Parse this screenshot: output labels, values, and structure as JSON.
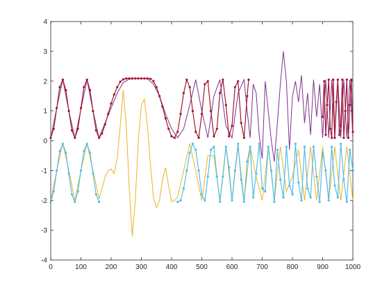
{
  "chart_data": {
    "type": "line",
    "title": "",
    "xlabel": "",
    "ylabel": "",
    "xlim": [
      0,
      1000
    ],
    "ylim": [
      -4,
      4
    ],
    "x_ticks": [
      "0",
      "100",
      "200",
      "300",
      "400",
      "500",
      "600",
      "700",
      "800",
      "900",
      "1000"
    ],
    "y_ticks": [
      "4",
      "3",
      "2",
      "1",
      "0",
      "-1",
      "-2",
      "-3",
      "-4"
    ],
    "grid": false,
    "legend": "none",
    "series": [
      {
        "style": "line",
        "color": "#7E2F8E",
        "x": [
          0,
          20,
          40,
          60,
          80,
          100,
          120,
          140,
          160,
          180,
          200,
          220,
          240,
          260,
          280,
          300,
          320,
          340,
          360,
          380,
          400,
          420,
          440,
          460,
          480,
          500,
          520,
          540,
          560,
          580,
          600,
          620,
          640,
          650,
          660,
          670,
          680,
          690,
          700,
          710,
          720,
          730,
          740,
          750,
          760,
          770,
          780,
          790,
          800,
          810,
          820,
          830,
          840,
          850,
          860,
          870,
          880,
          890,
          900,
          910,
          920,
          930,
          940,
          950,
          960,
          970,
          980,
          990,
          1000
        ],
        "y": [
          0.1,
          1.1,
          2.05,
          1.0,
          0.1,
          1.05,
          2.05,
          1.0,
          0.1,
          0.6,
          1.1,
          1.6,
          1.95,
          2.07,
          2.09,
          2.09,
          2.08,
          1.9,
          1.5,
          0.9,
          0.4,
          0.1,
          0.4,
          1.2,
          2.05,
          1.0,
          0.1,
          1.5,
          2.05,
          0.5,
          0.1,
          1.6,
          2.05,
          1.0,
          0.1,
          1.9,
          1.6,
          0.2,
          -0.6,
          2.0,
          1.0,
          0.0,
          -0.7,
          0.6,
          1.9,
          3.0,
          2.0,
          -0.3,
          1.5,
          2.0,
          1.3,
          2.2,
          0.6,
          1.6,
          0.2,
          2.05,
          0.8,
          1.9,
          0.1,
          2.05,
          0.1,
          2.05,
          0.1,
          2.05,
          0.1,
          2.05,
          0.1,
          2.05,
          0.1
        ]
      },
      {
        "style": "markers",
        "color": "#A2142F",
        "segments": [
          {
            "x": [
              0,
              10,
              20,
              30,
              40,
              50,
              60,
              70,
              80,
              90,
              100,
              110,
              120,
              130,
              140,
              150,
              160,
              170,
              180,
              190,
              200,
              210,
              220,
              230,
              240,
              250,
              260,
              270,
              280,
              290,
              300,
              310,
              320,
              330,
              340,
              350,
              360,
              370,
              380,
              390,
              400,
              410,
              420,
              430,
              440,
              450,
              460,
              470,
              480,
              490,
              500,
              510,
              520,
              530,
              540,
              550,
              560,
              570,
              580,
              590,
              600,
              610,
              620,
              630,
              640,
              650,
              655
            ],
            "y": [
              0.1,
              0.4,
              1.1,
              1.8,
              2.05,
              1.7,
              1.0,
              0.35,
              0.1,
              0.4,
              1.1,
              1.8,
              2.05,
              1.7,
              1.0,
              0.35,
              0.1,
              0.25,
              0.55,
              0.9,
              1.25,
              1.55,
              1.8,
              1.98,
              2.06,
              2.09,
              2.09,
              2.09,
              2.09,
              2.09,
              2.09,
              2.09,
              2.09,
              2.08,
              2.0,
              1.8,
              1.5,
              1.15,
              0.75,
              0.4,
              0.15,
              0.1,
              0.3,
              0.9,
              1.6,
              2.05,
              1.8,
              1.0,
              0.3,
              0.1,
              0.9,
              1.9,
              2.0,
              1.0,
              0.15,
              0.4,
              1.6,
              2.05,
              1.2,
              0.15,
              0.5,
              1.8,
              2.0,
              0.6,
              0.1,
              1.5,
              2.05
            ]
          },
          {
            "x": [
              900,
              905,
              910,
              915,
              920,
              925,
              930,
              935,
              940,
              945,
              950,
              955,
              960,
              965,
              970,
              975,
              980,
              985,
              990,
              995,
              1000
            ],
            "y": [
              0.8,
              2.0,
              0.2,
              1.2,
              2.05,
              0.4,
              0.1,
              2.05,
              0.1,
              1.3,
              2.05,
              0.2,
              0.5,
              2.05,
              0.1,
              1.0,
              2.05,
              0.1,
              1.2,
              2.05,
              0.3
            ]
          }
        ]
      },
      {
        "style": "line",
        "color": "#EDB120",
        "x": [
          0,
          20,
          40,
          60,
          80,
          100,
          120,
          140,
          160,
          170,
          180,
          190,
          200,
          210,
          220,
          230,
          240,
          250,
          260,
          270,
          280,
          290,
          300,
          310,
          320,
          330,
          340,
          350,
          360,
          370,
          380,
          390,
          400,
          410,
          420,
          440,
          460,
          480,
          500,
          520,
          540,
          560,
          580,
          600,
          620,
          640,
          660,
          680,
          700,
          720,
          740,
          760,
          780,
          800,
          820,
          840,
          860,
          880,
          900,
          920,
          940,
          960,
          980,
          1000
        ],
        "y": [
          -2.0,
          -1.0,
          -0.1,
          -1.0,
          -2.0,
          -1.0,
          -0.1,
          -1.0,
          -1.95,
          -1.6,
          -1.2,
          -1.0,
          -0.95,
          -1.1,
          -0.6,
          0.5,
          1.7,
          0.5,
          -1.6,
          -3.2,
          -2.0,
          0.0,
          1.2,
          1.4,
          0.5,
          -0.8,
          -1.9,
          -2.25,
          -2.0,
          -1.3,
          -0.9,
          -1.5,
          -2.05,
          -2.0,
          -1.9,
          -1.0,
          -0.1,
          -1.0,
          -2.0,
          -0.5,
          -0.5,
          -2.0,
          -0.2,
          -2.0,
          -0.2,
          -2.0,
          -0.2,
          -1.2,
          -2.0,
          -0.2,
          -2.0,
          -0.2,
          -1.7,
          -1.2,
          -0.3,
          -2.0,
          -0.2,
          -2.0,
          -0.2,
          -2.0,
          -0.2,
          -2.0,
          -0.2,
          -2.0
        ]
      },
      {
        "style": "markers",
        "color": "#4DBEEE",
        "segments": [
          {
            "x": [
              0,
              10,
              20,
              30,
              40,
              50,
              60,
              70,
              80,
              90,
              100,
              110,
              120,
              130,
              140,
              150,
              160
            ],
            "y": [
              -2.05,
              -1.7,
              -1.0,
              -0.35,
              -0.1,
              -0.4,
              -1.1,
              -1.8,
              -2.05,
              -1.7,
              -1.0,
              -0.35,
              -0.1,
              -0.4,
              -1.1,
              -1.8,
              -2.05
            ]
          },
          {
            "x": [
              420,
              430,
              440,
              450,
              460,
              470,
              480,
              490,
              500,
              510,
              520,
              530,
              540,
              550,
              560,
              570,
              580,
              590,
              600,
              610,
              620,
              630,
              640,
              650,
              660,
              670,
              680,
              690,
              700,
              710,
              720,
              730,
              740,
              750,
              760,
              770,
              780,
              790,
              800,
              810,
              820,
              830,
              840,
              850,
              860,
              870,
              880,
              890,
              900,
              910,
              920,
              930,
              940,
              950,
              960,
              970,
              980,
              990,
              1000
            ],
            "y": [
              -2.05,
              -2.0,
              -1.6,
              -1.0,
              -0.4,
              -0.1,
              -0.3,
              -1.0,
              -1.8,
              -2.0,
              -1.2,
              -0.3,
              -0.2,
              -1.2,
              -2.05,
              -1.2,
              -0.2,
              -0.9,
              -2.0,
              -1.0,
              -0.1,
              -1.3,
              -2.05,
              -0.7,
              -0.2,
              -1.9,
              -1.1,
              -0.1,
              -1.6,
              -1.7,
              -0.2,
              -1.0,
              -2.05,
              -0.3,
              -1.3,
              -1.9,
              -0.2,
              -1.5,
              -1.8,
              -0.1,
              -1.4,
              -2.0,
              -0.2,
              -1.6,
              -1.9,
              -0.2,
              -1.2,
              -2.05,
              -0.4,
              -1.0,
              -2.0,
              -0.2,
              -1.5,
              -1.9,
              -0.1,
              -1.3,
              -2.05,
              -0.3,
              -1.0
            ]
          }
        ]
      }
    ]
  }
}
